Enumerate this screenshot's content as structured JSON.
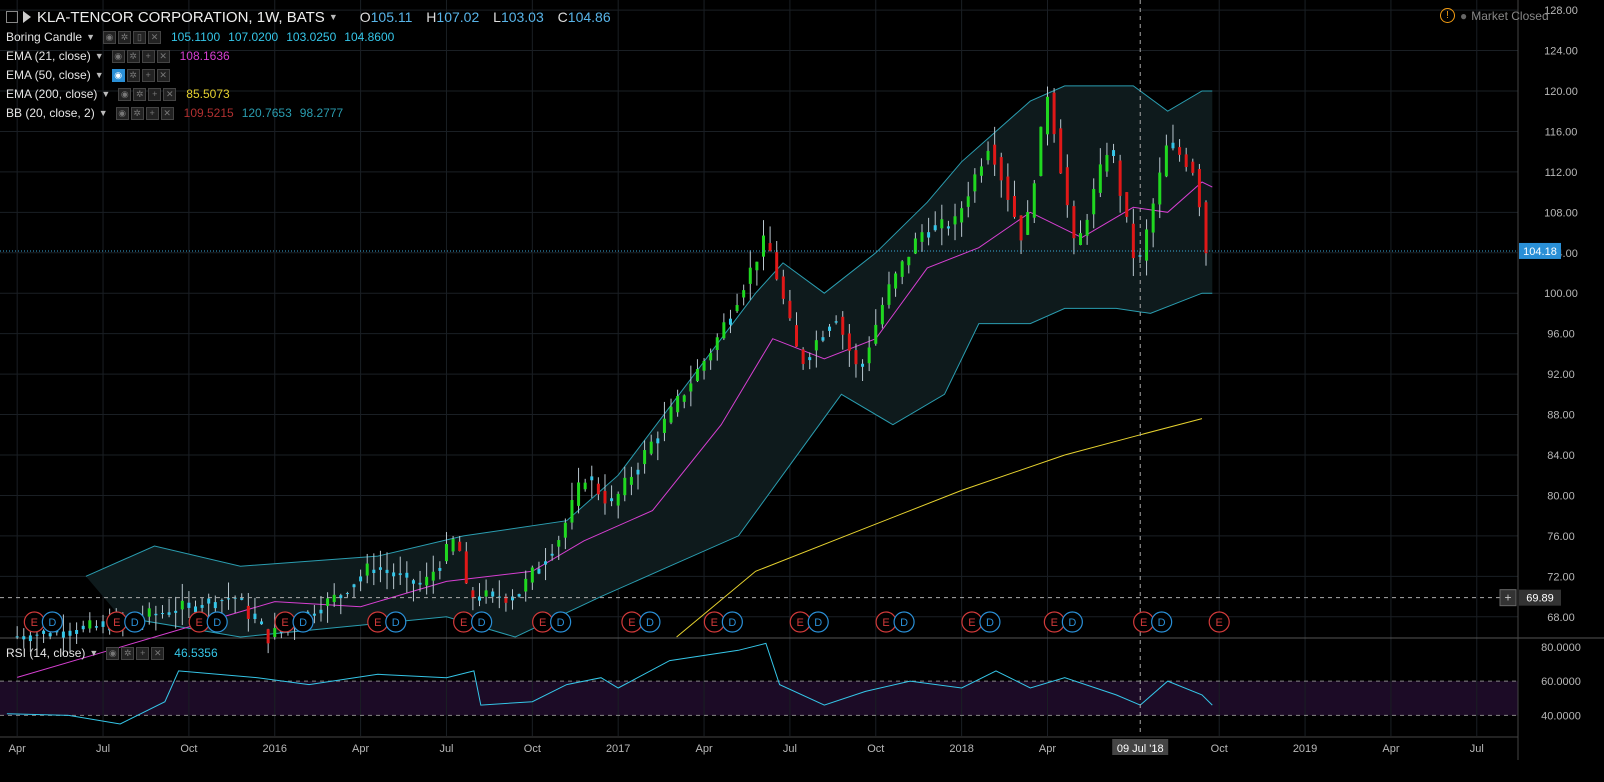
{
  "header": {
    "symbol": "KLA-TENCOR CORPORATION, 1W, BATS",
    "o_label": "O",
    "o": "105.11",
    "h_label": "H",
    "h": "107.02",
    "l_label": "L",
    "l": "103.03",
    "c_label": "C",
    "c": "104.86"
  },
  "status": {
    "text": "Market Closed",
    "icon": "warning-icon"
  },
  "legend": {
    "candle": {
      "name": "Boring Candle",
      "values": [
        "105.1100",
        "107.0200",
        "103.0250",
        "104.8600"
      ],
      "color": "#35c6e8"
    },
    "ema21": {
      "name": "EMA (21, close)",
      "value": "108.1636",
      "color": "#d63fd1"
    },
    "ema50": {
      "name": "EMA (50, close)",
      "value": ""
    },
    "ema200": {
      "name": "EMA (200, close)",
      "value": "85.5073",
      "color": "#e6d22f"
    },
    "bb": {
      "name": "BB (20, close, 2)",
      "values": [
        "109.5215",
        "120.7653",
        "98.2777"
      ],
      "colors": [
        "#b03030",
        "#2a9db0",
        "#2a9db0"
      ]
    }
  },
  "rsi": {
    "name": "RSI (14, close)",
    "value": "46.5356"
  },
  "chart_data": {
    "type": "candlestick",
    "price_axis": {
      "ticks": [
        "68.00",
        "72.00",
        "76.00",
        "80.00",
        "84.00",
        "88.00",
        "92.00",
        "96.00",
        "100.00",
        "104.00",
        "108.00",
        "112.00",
        "116.00",
        "120.00",
        "124.00",
        "128.00"
      ],
      "range": [
        66,
        129
      ]
    },
    "price_labels": {
      "last": "104.18",
      "cursor": "69.89"
    },
    "time_axis": {
      "labels": [
        "Apr",
        "Jul",
        "Oct",
        "2016",
        "Apr",
        "Jul",
        "Oct",
        "2017",
        "Apr",
        "Jul",
        "Oct",
        "2018",
        "Apr",
        "09 Jul '18",
        "Oct",
        "2019",
        "Apr",
        "Jul"
      ]
    },
    "rsi_axis": {
      "ticks": [
        "80.0000",
        "60.0000",
        "40.0000"
      ],
      "range": [
        28,
        84
      ],
      "band": [
        40,
        60
      ]
    },
    "earnings_markers": [
      {
        "e": "E",
        "d": "D"
      },
      {
        "e": "E",
        "d": "D"
      },
      {
        "e": "E",
        "d": "D"
      },
      {
        "e": "E",
        "d": "D"
      },
      {
        "e": "E",
        "d": "D"
      },
      {
        "e": "E",
        "d": "D"
      },
      {
        "e": "E",
        "d": "D"
      },
      {
        "e": "E",
        "d": "D"
      },
      {
        "e": "E",
        "d": "D"
      },
      {
        "e": "E",
        "d": "D"
      },
      {
        "e": "E",
        "d": "D"
      },
      {
        "e": "E",
        "d": "D"
      },
      {
        "e": "E",
        "d": "D"
      },
      {
        "e": "E",
        "d": "D"
      },
      {
        "e": "E",
        "d": ""
      }
    ],
    "colors": {
      "up": "#20d820",
      "down": "#e01818",
      "wick": "#b9c7cf",
      "bb": "#2a9db0",
      "ema21": "#d63fd1",
      "ema200": "#e6d22f",
      "rsi": "#35c6e8",
      "rsiband": "#1c0b26",
      "grid": "#1a1f24"
    },
    "ema200_points": [
      [
        2017.17,
        66.0
      ],
      [
        2017.4,
        72.5
      ],
      [
        2017.7,
        76.5
      ],
      [
        2018.0,
        80.5
      ],
      [
        2018.3,
        84.0
      ],
      [
        2018.52,
        86.0
      ],
      [
        2018.7,
        87.6
      ]
    ],
    "ema21_points": [
      [
        2015.25,
        62
      ],
      [
        2015.5,
        64.5
      ],
      [
        2015.75,
        67
      ],
      [
        2016.0,
        69.5
      ],
      [
        2016.25,
        69.0
      ],
      [
        2016.5,
        71.5
      ],
      [
        2016.75,
        72.5
      ],
      [
        2016.9,
        75.5
      ],
      [
        2017.1,
        78.5
      ],
      [
        2017.3,
        87.0
      ],
      [
        2017.45,
        95.5
      ],
      [
        2017.6,
        93.5
      ],
      [
        2017.75,
        95.5
      ],
      [
        2017.9,
        102.5
      ],
      [
        2018.05,
        104.5
      ],
      [
        2018.2,
        108.0
      ],
      [
        2018.35,
        105.5
      ],
      [
        2018.5,
        108.5
      ],
      [
        2018.6,
        108.0
      ],
      [
        2018.7,
        111.0
      ],
      [
        2018.73,
        110.5
      ]
    ],
    "bb_upper_points": [
      [
        2015.45,
        72
      ],
      [
        2015.65,
        75
      ],
      [
        2015.9,
        73
      ],
      [
        2016.3,
        74
      ],
      [
        2016.55,
        76
      ],
      [
        2016.85,
        77.5
      ],
      [
        2017.0,
        82
      ],
      [
        2017.2,
        91
      ],
      [
        2017.4,
        100
      ],
      [
        2017.48,
        103
      ],
      [
        2017.6,
        100
      ],
      [
        2017.75,
        104
      ],
      [
        2017.9,
        109
      ],
      [
        2018.0,
        113
      ],
      [
        2018.1,
        116
      ],
      [
        2018.2,
        119
      ],
      [
        2018.3,
        120.5
      ],
      [
        2018.5,
        120.5
      ],
      [
        2018.6,
        118
      ],
      [
        2018.7,
        120
      ],
      [
        2018.73,
        120
      ]
    ],
    "bb_lower_points": [
      [
        2015.55,
        68
      ],
      [
        2015.9,
        66
      ],
      [
        2016.2,
        67
      ],
      [
        2016.5,
        68
      ],
      [
        2016.7,
        66
      ],
      [
        2016.95,
        70
      ],
      [
        2017.15,
        73
      ],
      [
        2017.35,
        76
      ],
      [
        2017.5,
        83
      ],
      [
        2017.65,
        90
      ],
      [
        2017.8,
        87
      ],
      [
        2017.95,
        90
      ],
      [
        2018.05,
        97
      ],
      [
        2018.2,
        97
      ],
      [
        2018.3,
        98.5
      ],
      [
        2018.45,
        98.5
      ],
      [
        2018.55,
        98
      ],
      [
        2018.7,
        100
      ],
      [
        2018.73,
        100
      ]
    ],
    "candle_path": [
      [
        2015.25,
        66
      ],
      [
        2015.5,
        67
      ],
      [
        2015.7,
        68.5
      ],
      [
        2015.9,
        70
      ],
      [
        2016.0,
        66
      ],
      [
        2016.2,
        70
      ],
      [
        2016.3,
        73
      ],
      [
        2016.45,
        71
      ],
      [
        2016.55,
        76
      ],
      [
        2016.58,
        70
      ],
      [
        2016.72,
        70
      ],
      [
        2016.85,
        76
      ],
      [
        2016.92,
        82
      ],
      [
        2017.0,
        79
      ],
      [
        2017.15,
        87
      ],
      [
        2017.3,
        95
      ],
      [
        2017.45,
        105.5
      ],
      [
        2017.55,
        93
      ],
      [
        2017.65,
        98
      ],
      [
        2017.72,
        92
      ],
      [
        2017.8,
        100
      ],
      [
        2017.9,
        106
      ],
      [
        2018.0,
        107
      ],
      [
        2018.1,
        115
      ],
      [
        2018.2,
        105
      ],
      [
        2018.27,
        120
      ],
      [
        2018.35,
        104
      ],
      [
        2018.45,
        115
      ],
      [
        2018.53,
        102
      ],
      [
        2018.62,
        115
      ],
      [
        2018.7,
        112
      ],
      [
        2018.73,
        104.2
      ]
    ],
    "rsi_points": [
      [
        2015.22,
        41
      ],
      [
        2015.4,
        40
      ],
      [
        2015.55,
        35
      ],
      [
        2015.68,
        48
      ],
      [
        2015.72,
        66
      ],
      [
        2015.95,
        62
      ],
      [
        2016.1,
        58
      ],
      [
        2016.3,
        64
      ],
      [
        2016.5,
        62
      ],
      [
        2016.58,
        66
      ],
      [
        2016.6,
        46
      ],
      [
        2016.75,
        48
      ],
      [
        2016.85,
        58
      ],
      [
        2016.95,
        62
      ],
      [
        2017.0,
        56
      ],
      [
        2017.15,
        72
      ],
      [
        2017.35,
        78
      ],
      [
        2017.43,
        82
      ],
      [
        2017.47,
        58
      ],
      [
        2017.6,
        46
      ],
      [
        2017.72,
        54
      ],
      [
        2017.85,
        60
      ],
      [
        2018.0,
        56
      ],
      [
        2018.1,
        66
      ],
      [
        2018.2,
        56
      ],
      [
        2018.3,
        62
      ],
      [
        2018.45,
        52
      ],
      [
        2018.52,
        46
      ],
      [
        2018.6,
        60
      ],
      [
        2018.7,
        52
      ],
      [
        2018.73,
        46
      ]
    ]
  }
}
